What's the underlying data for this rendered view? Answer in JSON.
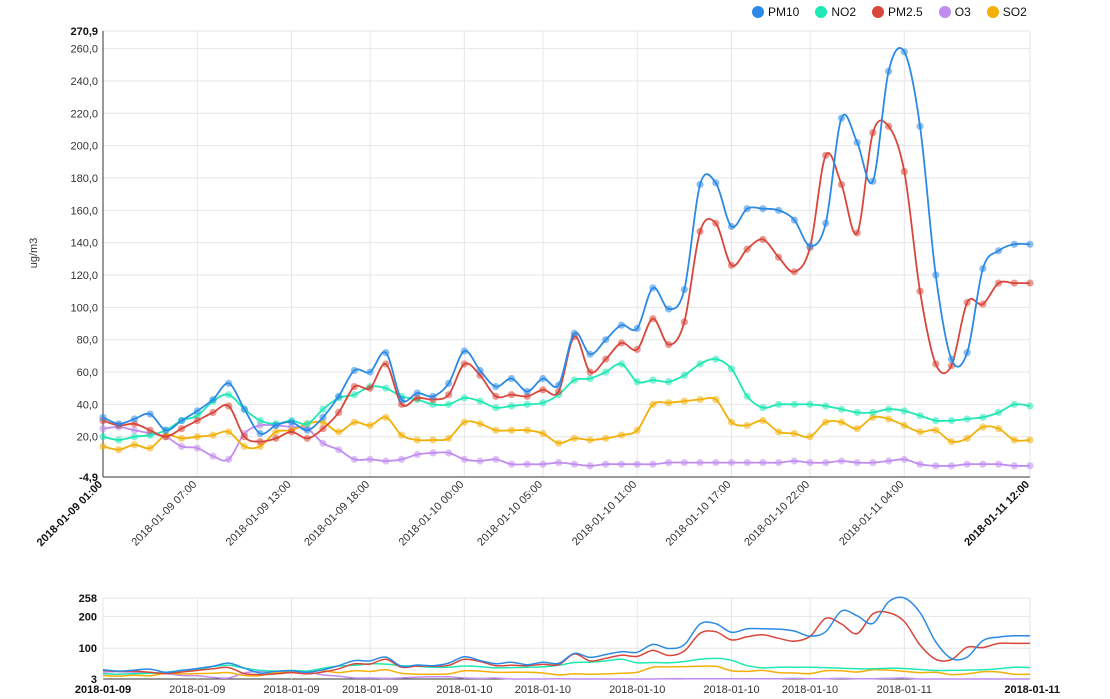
{
  "chart_data": {
    "type": "line",
    "ylabel": "ug/m3",
    "ylim": [
      -4.9,
      270.9
    ],
    "y_top_label": "270,9",
    "y_bottom_label": "-4,9",
    "y_ticks": [
      20,
      40,
      60,
      80,
      100,
      120,
      140,
      160,
      180,
      200,
      220,
      240,
      260
    ],
    "y_tick_labels": [
      "20,0",
      "40,0",
      "60,0",
      "80,0",
      "100,0",
      "120,0",
      "140,0",
      "160,0",
      "180,0",
      "200,0",
      "220,0",
      "240,0",
      "260,0"
    ],
    "n_points": 60,
    "x_tick_labels": [
      {
        "index": 0,
        "label": "2018-01-09 01:00",
        "bold": true
      },
      {
        "index": 6,
        "label": "2018-01-09 07:00",
        "bold": false
      },
      {
        "index": 12,
        "label": "2018-01-09 13:00",
        "bold": false
      },
      {
        "index": 17,
        "label": "2018-01-09 18:00",
        "bold": false
      },
      {
        "index": 23,
        "label": "2018-01-10 00:00",
        "bold": false
      },
      {
        "index": 28,
        "label": "2018-01-10 05:00",
        "bold": false
      },
      {
        "index": 34,
        "label": "2018-01-10 11:00",
        "bold": false
      },
      {
        "index": 40,
        "label": "2018-01-10 17:00",
        "bold": false
      },
      {
        "index": 45,
        "label": "2018-01-10 22:00",
        "bold": false
      },
      {
        "index": 51,
        "label": "2018-01-11 04:00",
        "bold": false
      },
      {
        "index": 59,
        "label": "2018-01-11 12:00",
        "bold": true
      }
    ],
    "series": [
      {
        "name": "PM10",
        "color": "#2b8ae6",
        "values": [
          32,
          28,
          31,
          34,
          24,
          30,
          36,
          43,
          53,
          37,
          22,
          27,
          29,
          24,
          32,
          45,
          61,
          60,
          72,
          43,
          47,
          45,
          53,
          73,
          61,
          51,
          56,
          48,
          56,
          52,
          84,
          71,
          80,
          89,
          87,
          112,
          99,
          111,
          176,
          177,
          150,
          161,
          161,
          160,
          154,
          138,
          152,
          217,
          202,
          178,
          246,
          258,
          212,
          120,
          68,
          72,
          124,
          135,
          139,
          139
        ]
      },
      {
        "name": "NO2",
        "color": "#1ee8b4",
        "values": [
          20,
          18,
          20,
          21,
          24,
          30,
          33,
          42,
          46,
          37,
          30,
          28,
          30,
          28,
          37,
          44,
          46,
          51,
          50,
          45,
          43,
          40,
          40,
          44,
          42,
          38,
          39,
          40,
          41,
          46,
          55,
          56,
          60,
          65,
          54,
          55,
          54,
          58,
          65,
          68,
          62,
          45,
          38,
          40,
          40,
          40,
          39,
          37,
          35,
          35,
          37,
          36,
          33,
          30,
          30,
          31,
          32,
          35,
          40,
          39
        ]
      },
      {
        "name": "PM2.5",
        "color": "#d9463a",
        "values": [
          30,
          27,
          28,
          24,
          20,
          25,
          30,
          35,
          39,
          20,
          17,
          19,
          23,
          19,
          25,
          35,
          51,
          50,
          65,
          40,
          44,
          43,
          46,
          65,
          58,
          45,
          46,
          45,
          49,
          48,
          82,
          60,
          68,
          78,
          74,
          93,
          77,
          91,
          147,
          152,
          126,
          136,
          142,
          131,
          122,
          137,
          194,
          176,
          146,
          208,
          212,
          184,
          110,
          65,
          64,
          103,
          102,
          115,
          115,
          115
        ]
      },
      {
        "name": "O3",
        "color": "#c18cf0",
        "values": [
          25,
          26,
          24,
          22,
          20,
          14,
          13,
          8,
          6,
          22,
          27,
          27,
          26,
          25,
          16,
          12,
          6,
          6,
          5,
          6,
          9,
          10,
          10,
          6,
          5,
          6,
          3,
          3,
          3,
          4,
          3,
          2,
          3,
          3,
          3,
          3,
          4,
          4,
          4,
          4,
          4,
          4,
          4,
          4,
          5,
          4,
          4,
          5,
          4,
          4,
          5,
          6,
          3,
          2,
          2,
          3,
          3,
          3,
          2,
          2
        ]
      },
      {
        "name": "SO2",
        "color": "#f2b009",
        "values": [
          14,
          12,
          15,
          13,
          21,
          19,
          20,
          21,
          23,
          14,
          14,
          23,
          24,
          28,
          29,
          23,
          29,
          27,
          32,
          21,
          18,
          18,
          19,
          29,
          28,
          24,
          24,
          24,
          22,
          16,
          19,
          18,
          19,
          21,
          24,
          40,
          41,
          42,
          43,
          43,
          29,
          27,
          30,
          23,
          22,
          20,
          29,
          29,
          25,
          32,
          31,
          27,
          23,
          24,
          17,
          19,
          26,
          25,
          18,
          18
        ]
      }
    ],
    "navigator": {
      "y_labels": [
        "258",
        "200",
        "100",
        "3"
      ],
      "y_values": [
        258,
        200,
        100,
        3
      ],
      "x_labels": [
        "2018-01-09",
        "2018-01-09",
        "2018-01-09",
        "2018-01-09",
        "2018-01-10",
        "2018-01-10",
        "2018-01-10",
        "2018-01-10",
        "2018-01-10",
        "2018-01-11",
        "2018-01-11"
      ]
    }
  }
}
